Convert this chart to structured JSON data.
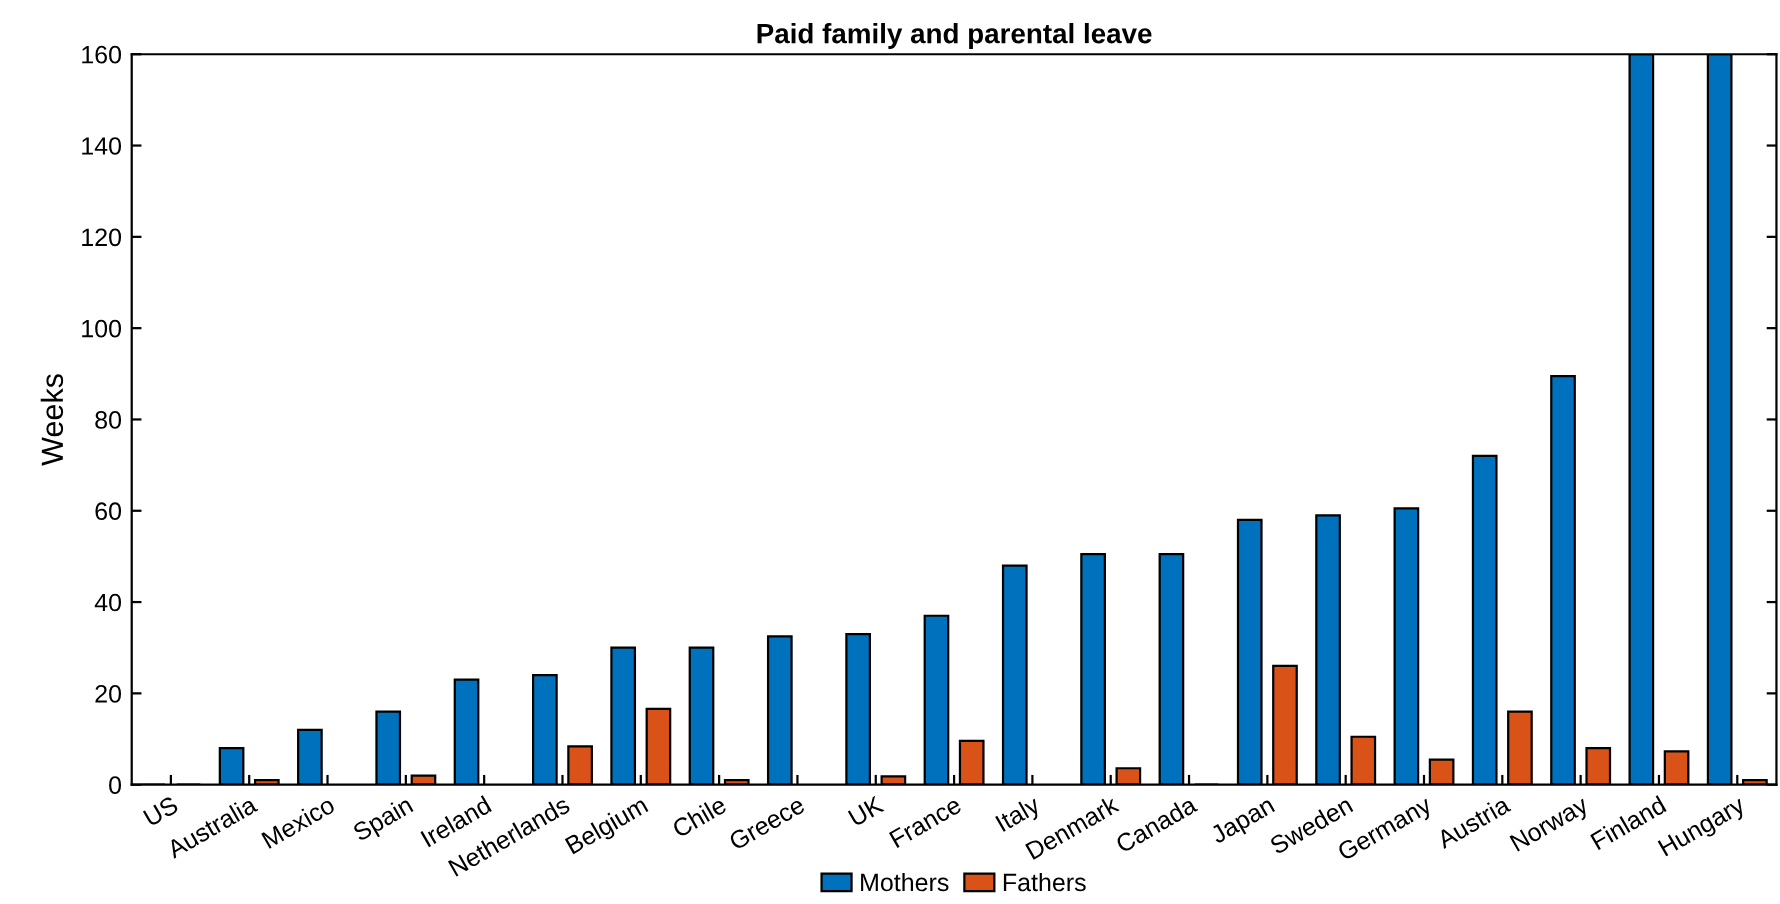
{
  "chart_data": {
    "type": "bar",
    "title": "Paid family and parental leave",
    "ylabel": "Weeks",
    "categories": [
      "US",
      "Australia",
      "Mexico",
      "Spain",
      "Ireland",
      "Netherlands",
      "Belgium",
      "Chile",
      "Greece",
      "UK",
      "France",
      "Italy",
      "Denmark",
      "Canada",
      "Japan",
      "Sweden",
      "Germany",
      "Austria",
      "Norway",
      "Finland",
      "Hungary"
    ],
    "series": [
      {
        "name": "Mothers",
        "color": "#0072bd",
        "values": [
          0,
          8,
          12,
          16,
          23,
          24,
          30,
          30,
          32.5,
          33,
          37,
          48,
          50.5,
          50.5,
          58,
          59,
          60.5,
          72,
          89.5,
          160,
          160
        ]
      },
      {
        "name": "Fathers",
        "color": "#d95319",
        "values": [
          0,
          1,
          null,
          2,
          null,
          8.4,
          16.6,
          1,
          null,
          1.8,
          9.6,
          null,
          3.6,
          0,
          26,
          10.5,
          5.5,
          16,
          8,
          7.3,
          1
        ]
      }
    ],
    "ylim": [
      0,
      160
    ],
    "yticks": [
      0,
      20,
      40,
      60,
      80,
      100,
      120,
      140,
      160
    ],
    "grid": false,
    "legend": "bottom"
  }
}
